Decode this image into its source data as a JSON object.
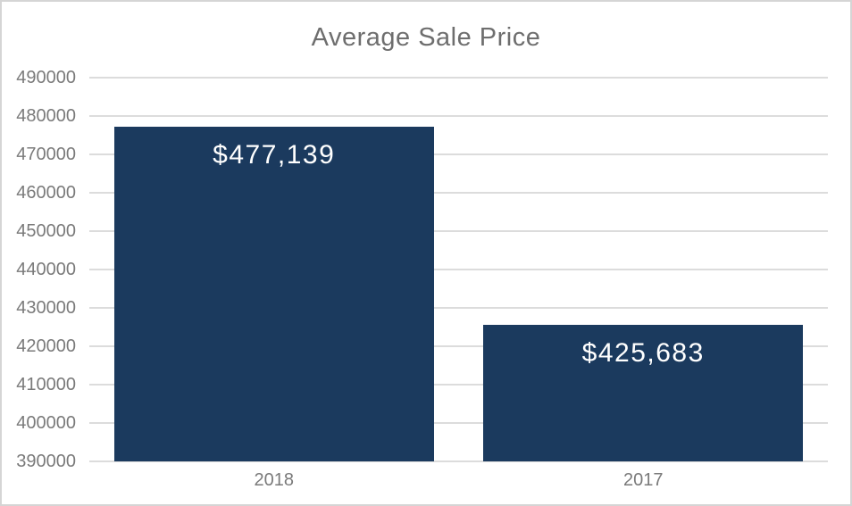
{
  "chart_data": {
    "type": "bar",
    "title": "Average Sale Price",
    "categories": [
      "2018",
      "2017"
    ],
    "values": [
      477139,
      425683
    ],
    "value_labels": [
      "$477,139",
      "$425,683"
    ],
    "xlabel": "",
    "ylabel": "",
    "ylim": [
      390000,
      490000
    ],
    "ytick_step": 10000,
    "ytick_labels": [
      "390000",
      "400000",
      "410000",
      "420000",
      "430000",
      "440000",
      "450000",
      "460000",
      "470000",
      "480000",
      "490000"
    ],
    "grid": true,
    "legend": false
  },
  "colors": {
    "bar_fill": "#1b3a5e",
    "title_text": "#6e6e6e",
    "axis_text": "#7a7a7a",
    "gridline": "#dcdcdc",
    "value_text": "#ffffff",
    "frame_border": "#d5d5d5",
    "background": "#ffffff"
  }
}
